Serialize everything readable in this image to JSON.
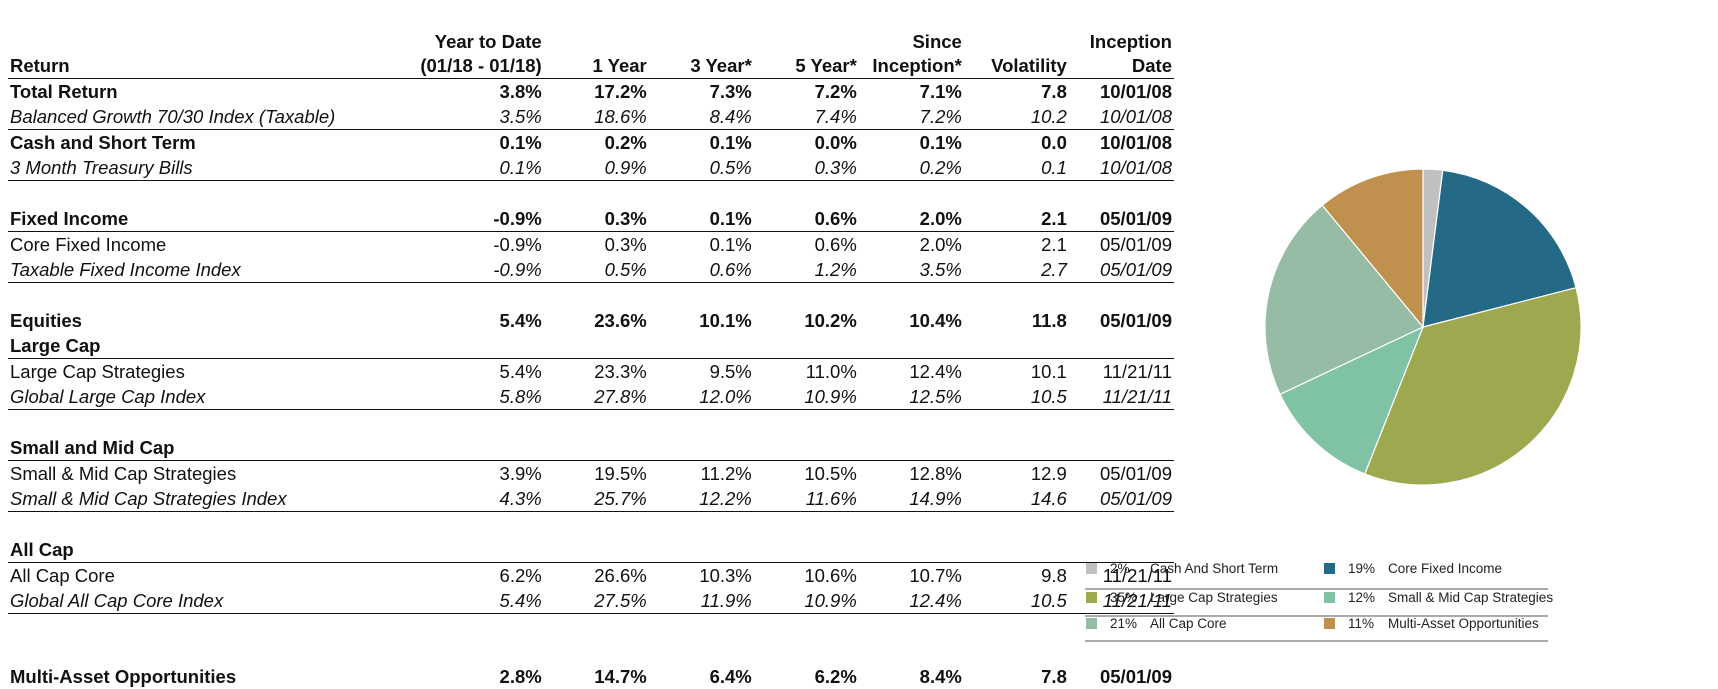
{
  "table": {
    "columns": [
      "Return",
      "Year to Date\n(01/18 - 01/18)",
      "1 Year",
      "3 Year*",
      "5 Year*",
      "Since\nInception*",
      "Volatility",
      "Inception\nDate"
    ],
    "rows": [
      {
        "kind": "total",
        "line": false,
        "cells": [
          "Total Return",
          "3.8%",
          "17.2%",
          "7.3%",
          "7.2%",
          "7.1%",
          "7.8",
          "10/01/08"
        ]
      },
      {
        "kind": "bench",
        "line": true,
        "cells": [
          "Balanced Growth 70/30 Index (Taxable)",
          "3.5%",
          "18.6%",
          "8.4%",
          "7.4%",
          "7.2%",
          "10.2",
          "10/01/08"
        ]
      },
      {
        "kind": "total",
        "line": false,
        "cells": [
          "Cash and Short Term",
          "0.1%",
          "0.2%",
          "0.1%",
          "0.0%",
          "0.1%",
          "0.0",
          "10/01/08"
        ]
      },
      {
        "kind": "bench",
        "line": true,
        "cells": [
          "3 Month Treasury Bills",
          "0.1%",
          "0.9%",
          "0.5%",
          "0.3%",
          "0.2%",
          "0.1",
          "10/01/08"
        ]
      },
      {
        "kind": "gap"
      },
      {
        "kind": "total",
        "line": true,
        "cells": [
          "Fixed Income",
          "-0.9%",
          "0.3%",
          "0.1%",
          "0.6%",
          "2.0%",
          "2.1",
          "05/01/09"
        ]
      },
      {
        "kind": "plain",
        "line": false,
        "cells": [
          "Core Fixed Income",
          "-0.9%",
          "0.3%",
          "0.1%",
          "0.6%",
          "2.0%",
          "2.1",
          "05/01/09"
        ]
      },
      {
        "kind": "bench",
        "line": true,
        "cells": [
          "Taxable Fixed Income Index",
          "-0.9%",
          "0.5%",
          "0.6%",
          "1.2%",
          "3.5%",
          "2.7",
          "05/01/09"
        ]
      },
      {
        "kind": "gap"
      },
      {
        "kind": "total",
        "line": false,
        "cells": [
          "Equities",
          "5.4%",
          "23.6%",
          "10.1%",
          "10.2%",
          "10.4%",
          "11.8",
          "05/01/09"
        ]
      },
      {
        "kind": "sub",
        "line": true,
        "cells": [
          "Large Cap",
          "",
          "",
          "",
          "",
          "",
          "",
          ""
        ]
      },
      {
        "kind": "plain",
        "line": false,
        "cells": [
          "Large Cap Strategies",
          "5.4%",
          "23.3%",
          "9.5%",
          "11.0%",
          "12.4%",
          "10.1",
          "11/21/11"
        ]
      },
      {
        "kind": "bench",
        "line": true,
        "cells": [
          "Global Large Cap Index",
          "5.8%",
          "27.8%",
          "12.0%",
          "10.9%",
          "12.5%",
          "10.5",
          "11/21/11"
        ]
      },
      {
        "kind": "gap"
      },
      {
        "kind": "sub",
        "line": true,
        "cells": [
          "Small and Mid Cap",
          "",
          "",
          "",
          "",
          "",
          "",
          ""
        ]
      },
      {
        "kind": "plain",
        "line": false,
        "cells": [
          "Small & Mid Cap Strategies",
          "3.9%",
          "19.5%",
          "11.2%",
          "10.5%",
          "12.8%",
          "12.9",
          "05/01/09"
        ]
      },
      {
        "kind": "bench",
        "line": true,
        "cells": [
          "Small & Mid Cap Strategies Index",
          "4.3%",
          "25.7%",
          "12.2%",
          "11.6%",
          "14.9%",
          "14.6",
          "05/01/09"
        ]
      },
      {
        "kind": "gap"
      },
      {
        "kind": "sub",
        "line": true,
        "cells": [
          "All Cap",
          "",
          "",
          "",
          "",
          "",
          "",
          ""
        ]
      },
      {
        "kind": "plain",
        "line": false,
        "cells": [
          "All Cap Core",
          "6.2%",
          "26.6%",
          "10.3%",
          "10.6%",
          "10.7%",
          "9.8",
          "11/21/11"
        ]
      },
      {
        "kind": "bench",
        "line": true,
        "cells": [
          "Global All Cap Core Index",
          "5.4%",
          "27.5%",
          "11.9%",
          "10.9%",
          "12.4%",
          "10.5",
          "11/21/11"
        ]
      },
      {
        "kind": "gap"
      },
      {
        "kind": "gap"
      },
      {
        "kind": "total",
        "line": false,
        "cells": [
          "Multi-Asset Opportunities",
          "2.8%",
          "14.7%",
          "6.4%",
          "6.2%",
          "8.4%",
          "7.8",
          "05/01/09"
        ]
      }
    ]
  },
  "chart_data": {
    "type": "pie",
    "slices": [
      {
        "label": "Cash And Short Term",
        "value": 2,
        "pct_label": "2%",
        "color": "#c0c0c0"
      },
      {
        "label": "Core Fixed Income",
        "value": 19,
        "pct_label": "19%",
        "color": "#246a86"
      },
      {
        "label": "Large Cap Strategies",
        "value": 35,
        "pct_label": "35%",
        "color": "#9ea84e"
      },
      {
        "label": "Small & Mid Cap Strategies",
        "value": 12,
        "pct_label": "12%",
        "color": "#7fc2a4"
      },
      {
        "label": "All Cap Core",
        "value": 21,
        "pct_label": "21%",
        "color": "#96bca6"
      },
      {
        "label": "Multi-Asset Opportunities",
        "value": 11,
        "pct_label": "11%",
        "color": "#bf904e"
      }
    ],
    "legend_order": [
      0,
      1,
      2,
      3,
      4,
      5
    ],
    "legend_position": "bottom"
  }
}
